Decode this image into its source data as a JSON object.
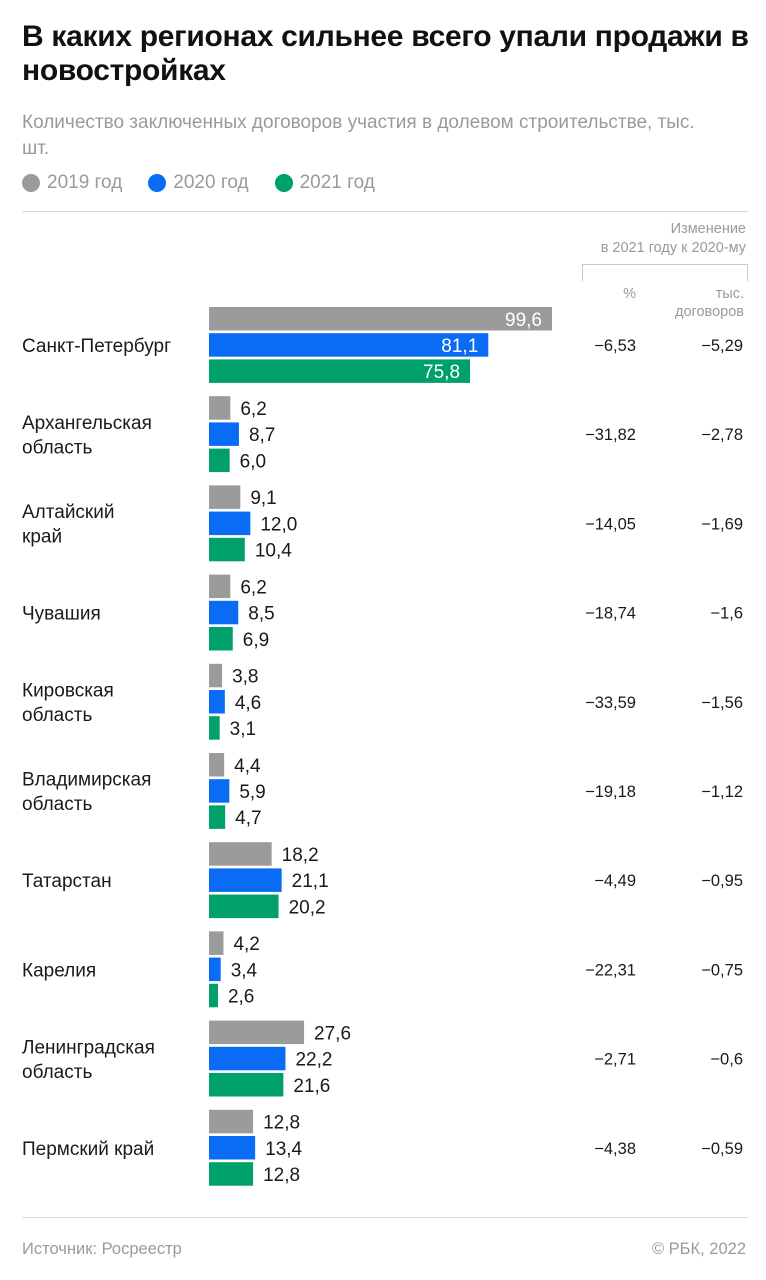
{
  "title": "В каких регионах сильнее всего упали продажи в новостройках",
  "subtitle": "Количество заключенных договоров участия в долевом строительстве, тыс. шт.",
  "legend": [
    {
      "label": "2019 год",
      "color": "#9b9b9b"
    },
    {
      "label": "2020 год",
      "color": "#0a6cf5"
    },
    {
      "label": "2021 год",
      "color": "#00a06b"
    }
  ],
  "change_header": {
    "line1": "Изменение",
    "line2": "в 2021 году к 2020-му",
    "col_pct": "%",
    "col_abs_line1": "тыс.",
    "col_abs_line2": "договоров"
  },
  "chart_data": {
    "type": "bar",
    "orientation": "horizontal",
    "title": "В каких регионах сильнее всего упали продажи в новостройках",
    "subtitle": "Количество заключенных договоров участия в долевом строительстве, тыс. шт.",
    "categories": [
      [
        "Санкт-Петербург"
      ],
      [
        "Архангельская",
        "область"
      ],
      [
        "Алтайский",
        "край"
      ],
      [
        "Чувашия"
      ],
      [
        "Кировская",
        "область"
      ],
      [
        "Владимирская",
        "область"
      ],
      [
        "Татарстан"
      ],
      [
        "Карелия"
      ],
      [
        "Ленинградская",
        "область"
      ],
      [
        "Пермский край"
      ]
    ],
    "series": [
      {
        "name": "2019 год",
        "color": "#9b9b9b",
        "values": [
          99.6,
          6.2,
          9.1,
          6.2,
          3.8,
          4.4,
          18.2,
          4.2,
          27.6,
          12.8
        ],
        "labels": [
          "99,6",
          "6,2",
          "9,1",
          "6,2",
          "3,8",
          "4,4",
          "18,2",
          "4,2",
          "27,6",
          "12,8"
        ]
      },
      {
        "name": "2020 год",
        "color": "#0a6cf5",
        "values": [
          81.1,
          8.7,
          12.0,
          8.5,
          4.6,
          5.9,
          21.1,
          3.4,
          22.2,
          13.4
        ],
        "labels": [
          "81,1",
          "8,7",
          "12,0",
          "8,5",
          "4,6",
          "5,9",
          "21,1",
          "3,4",
          "22,2",
          "13,4"
        ]
      },
      {
        "name": "2021 год",
        "color": "#00a06b",
        "values": [
          75.8,
          6.0,
          10.4,
          6.9,
          3.1,
          4.7,
          20.2,
          2.6,
          21.6,
          12.8
        ],
        "labels": [
          "75,8",
          "6,0",
          "10,4",
          "6,9",
          "3,1",
          "4,7",
          "20,2",
          "2,6",
          "21,6",
          "12,8"
        ]
      }
    ],
    "change_pct": [
      "−6,53",
      "−31,82",
      "−14,05",
      "−18,74",
      "−33,59",
      "−19,18",
      "−4,49",
      "−22,31",
      "−2,71",
      "−4,38"
    ],
    "change_abs": [
      "−5,29",
      "−2,78",
      "−1,69",
      "−1,6",
      "−1,56",
      "−1,12",
      "−0,95",
      "−0,75",
      "−0,6",
      "−0,59"
    ],
    "xlim": [
      0,
      99.6
    ],
    "grid": false,
    "legend_position": "top-left"
  },
  "footer": {
    "source": "Источник: Росреестр",
    "copyright": "© РБК, 2022"
  }
}
